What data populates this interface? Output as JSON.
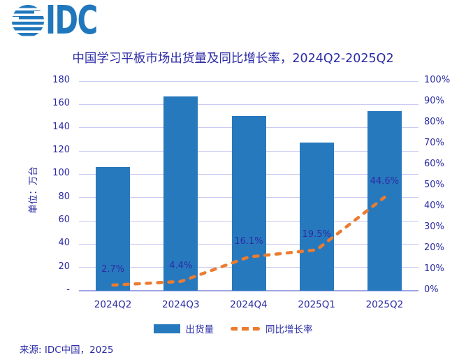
{
  "logo": {
    "text": "IDC"
  },
  "title": "中国学习平板市场出货量及同比增长率，2024Q2-2025Q2",
  "source": "来源: IDC中国，2025",
  "legend": {
    "items": [
      {
        "label": "出货量",
        "marker": "bar"
      },
      {
        "label": "同比增长率",
        "marker": "dashed-line"
      }
    ]
  },
  "colors": {
    "bar": "#2779BE",
    "line": "#EC7C30",
    "navy": "#2B2BA5",
    "grid": "#CBCBF2",
    "axis": "#A2A2E4",
    "logo": "#2077BC",
    "background": "#FFFFFF"
  },
  "chart_data": {
    "type": "bar+line combo",
    "title": "中国学习平板市场出货量及同比增长率，2024Q2-2025Q2",
    "categories": [
      "2024Q2",
      "2024Q3",
      "2024Q4",
      "2025Q1",
      "2025Q2"
    ],
    "series": [
      {
        "name": "出货量",
        "type": "bar",
        "axis": "left",
        "unit": "万台",
        "values": [
          106,
          167,
          150,
          127,
          154
        ]
      },
      {
        "name": "同比增长率",
        "type": "dashed-line",
        "axis": "right",
        "values_pct": [
          2.7,
          4.4,
          16.1,
          19.5,
          44.6
        ],
        "point_labels": [
          "2.7%",
          "4.4%",
          "16.1%",
          "19.5%",
          "44.6%"
        ]
      }
    ],
    "left_axis": {
      "title": "单位：万台",
      "min": 0,
      "max": 180,
      "step": 20,
      "tick_labels": [
        "-",
        "20",
        "40",
        "60",
        "80",
        "100",
        "120",
        "140",
        "160",
        "180"
      ]
    },
    "right_axis": {
      "min": 0,
      "max": 100,
      "step": 10,
      "tick_labels": [
        "0%",
        "10%",
        "20%",
        "30%",
        "40%",
        "50%",
        "60%",
        "70%",
        "80%",
        "90%",
        "100%"
      ]
    },
    "grid": true,
    "legend_position": "bottom"
  }
}
